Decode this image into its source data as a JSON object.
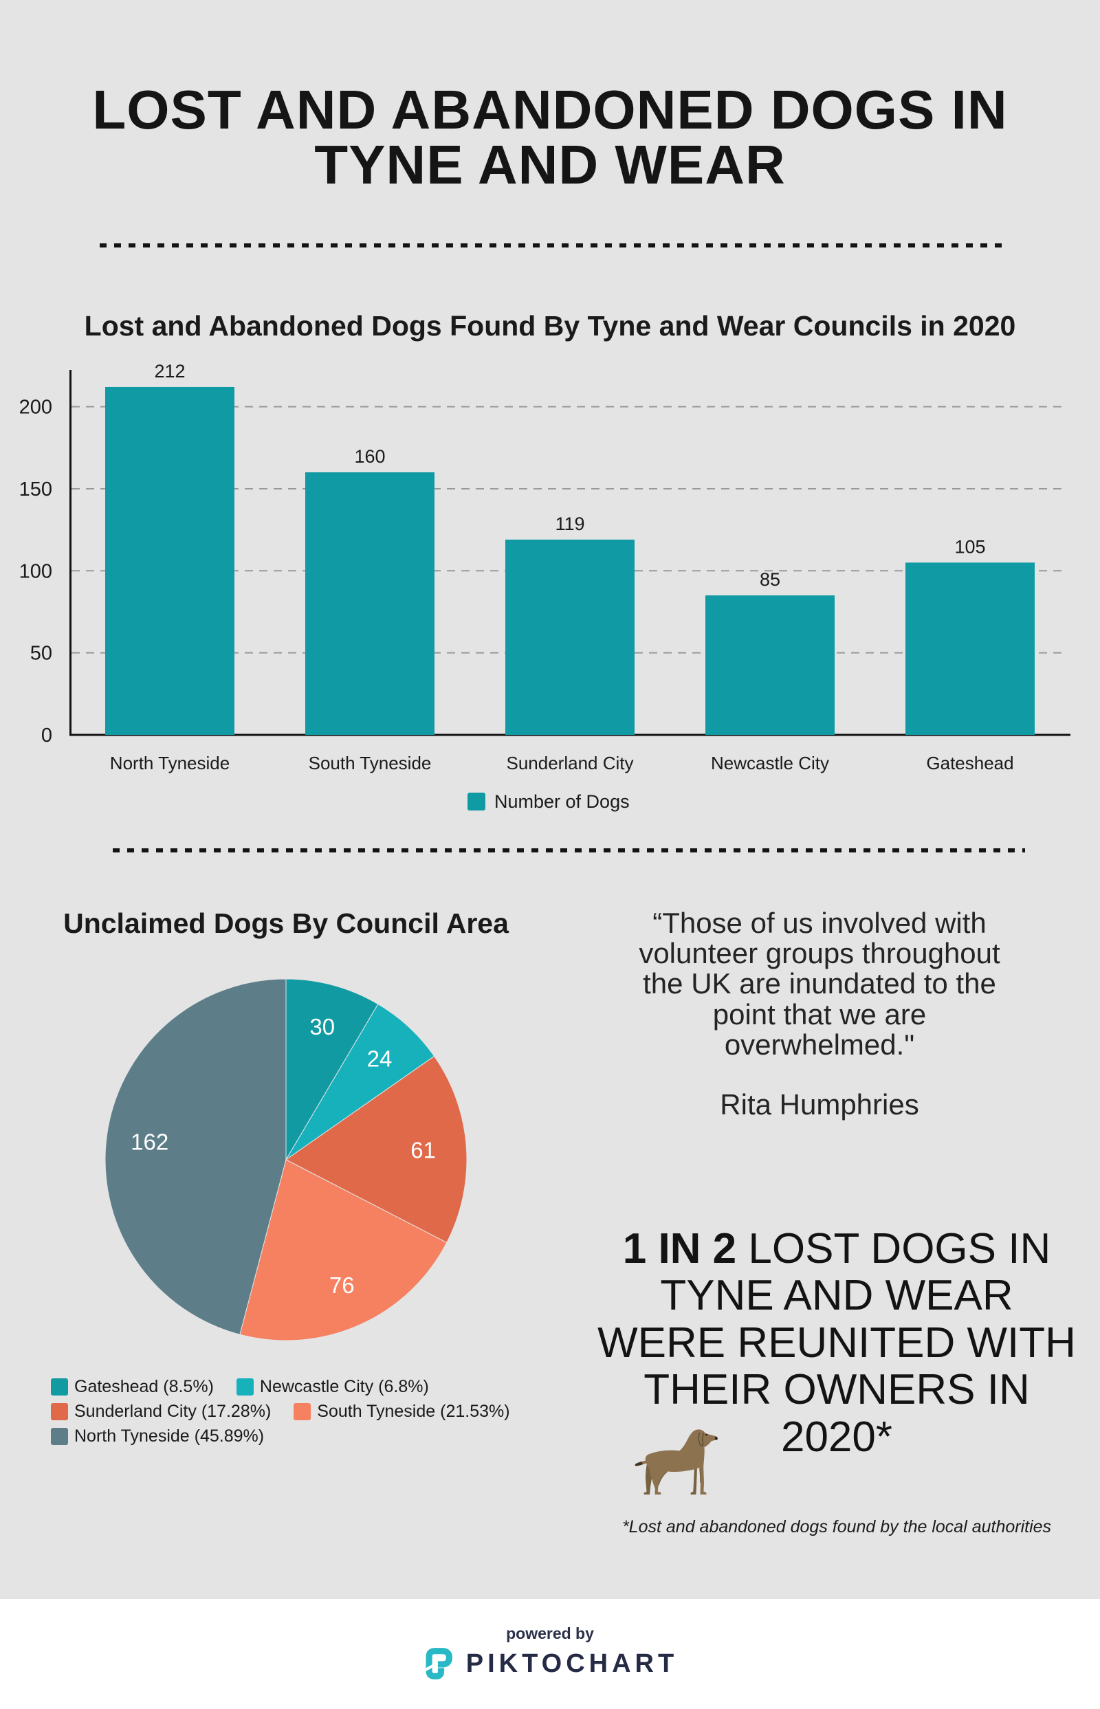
{
  "page": {
    "title": "LOST AND ABANDONED DOGS IN TYNE AND WEAR",
    "title_lines": [
      "LOST AND ABANDONED DOGS IN",
      "TYNE AND WEAR"
    ],
    "background_color": "#e4e4e4",
    "text_color": "#1a1a1a"
  },
  "chart_data": [
    {
      "type": "bar",
      "title": "Lost and Abandoned Dogs Found By Tyne and Wear Councils in 2020",
      "categories": [
        "North Tyneside",
        "South Tyneside",
        "Sunderland City",
        "Newcastle City",
        "Gateshead"
      ],
      "values": [
        212,
        160,
        119,
        85,
        105
      ],
      "bar_color": "#0f9aa4",
      "ylim": [
        0,
        220
      ],
      "yticks": [
        0,
        50,
        100,
        150,
        200
      ],
      "grid": "dashed horizontal",
      "legend_label": "Number of Dogs",
      "legend_position": "bottom"
    },
    {
      "type": "pie",
      "title": "Unclaimed Dogs By Council Area",
      "slices": [
        {
          "label": "Gateshead",
          "value": 30,
          "pct": "8.5%",
          "color": "#129aa3"
        },
        {
          "label": "Newcastle City",
          "value": 24,
          "pct": "6.8%",
          "color": "#17b1bc"
        },
        {
          "label": "Sunderland City",
          "value": 61,
          "pct": "17.28%",
          "color": "#e0694a"
        },
        {
          "label": "South Tyneside",
          "value": 76,
          "pct": "21.53%",
          "color": "#f58161"
        },
        {
          "label": "North Tyneside",
          "value": 162,
          "pct": "45.89%",
          "color": "#5d7e88"
        }
      ],
      "start_angle": "12 o'clock, clockwise",
      "value_labels": "inside, white",
      "legend_position": "bottom-left, wrapped"
    }
  ],
  "quote": {
    "lines": [
      "“Those of us involved with",
      "volunteer groups throughout",
      "the UK are inundated to the",
      "point that we are",
      "overwhelmed.\""
    ],
    "author": "Rita Humphries"
  },
  "statement": {
    "bold_prefix": "1 IN 2",
    "lines": [
      "1 IN 2 LOST DOGS IN",
      "TYNE AND WEAR",
      "WERE REUNITED WITH",
      "THEIR OWNERS IN",
      "2020*"
    ]
  },
  "footnote": "*Lost and abandoned dogs found by the local authorities",
  "footer": {
    "powered_by": "powered by",
    "brand": "PIKTOCHART",
    "logo_color": "#29b8c5",
    "brand_color": "#262b45"
  },
  "dog_icon_colors": {
    "body": "#8d7250",
    "shade": "#77623f",
    "tail_tip": "#40331f",
    "nose": "#2e2417"
  }
}
